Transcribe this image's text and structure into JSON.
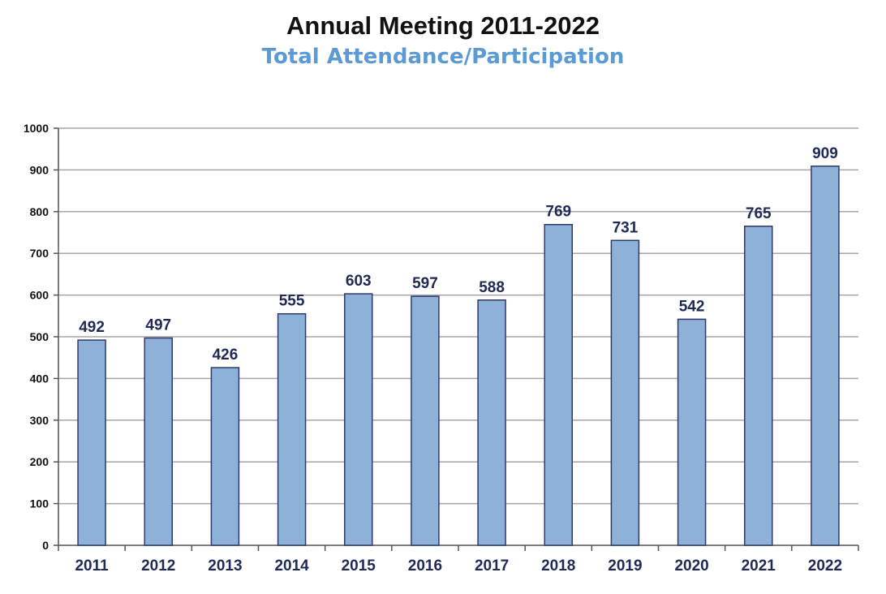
{
  "chart_data": {
    "type": "bar",
    "title": "Annual Meeting 2011-2022",
    "subtitle": "Total Attendance/Participation",
    "categories": [
      "2011",
      "2012",
      "2013",
      "2014",
      "2015",
      "2016",
      "2017",
      "2018",
      "2019",
      "2020",
      "2021",
      "2022"
    ],
    "values": [
      492,
      497,
      426,
      555,
      603,
      597,
      588,
      769,
      731,
      542,
      765,
      909
    ],
    "ylim": [
      0,
      1000
    ],
    "yticks": [
      0,
      100,
      200,
      300,
      400,
      500,
      600,
      700,
      800,
      900,
      1000
    ],
    "xlabel": "",
    "ylabel": "",
    "grid": true,
    "colors": {
      "bar_fill": "#8eb1d8",
      "bar_stroke": "#2e3a6e",
      "data_label": "#1f2a56",
      "tick_label": "#111111",
      "gridline": "#a6a6a6",
      "title": "#111111",
      "subtitle": "#5b9bd5"
    }
  }
}
